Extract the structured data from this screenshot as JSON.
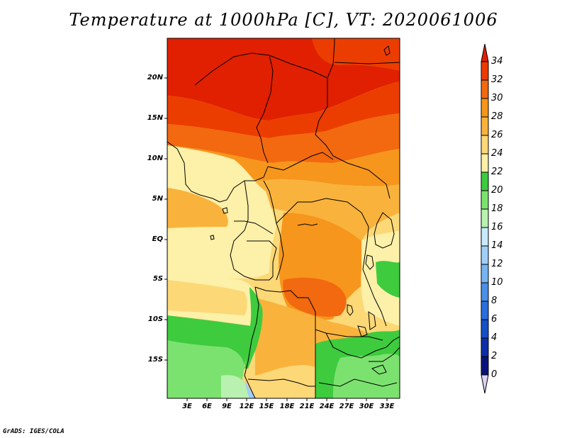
{
  "title": "Temperature at 1000hPa [C], VT: 2020061006",
  "credit": "GrADS: IGES/COLA",
  "map": {
    "lat_ticks": [
      "20N",
      "15N",
      "10N",
      "5N",
      "EQ",
      "5S",
      "10S",
      "15S"
    ],
    "lon_ticks": [
      "3E",
      "6E",
      "9E",
      "12E",
      "15E",
      "18E",
      "21E",
      "24E",
      "27E",
      "30E",
      "33E"
    ]
  },
  "colorbar": {
    "labels": [
      "34",
      "32",
      "30",
      "28",
      "26",
      "24",
      "22",
      "20",
      "18",
      "16",
      "14",
      "12",
      "10",
      "8",
      "6",
      "4",
      "2",
      "0"
    ],
    "colors": {
      "above_34": "#e02000",
      "32_34": "#ec3d00",
      "30_32": "#f26910",
      "28_30": "#f7961c",
      "26_28": "#f9b33c",
      "24_26": "#fcd877",
      "22_24": "#fdf0a8",
      "20_22": "#3ecb3e",
      "18_20": "#7ce26f",
      "16_18": "#b8f1b0",
      "14_16": "#c8eafc",
      "12_14": "#a0cef7",
      "10_12": "#78b4f2",
      "8_10": "#4a8fe8",
      "6_8": "#2a6fdc",
      "4_6": "#1650c8",
      "2_4": "#0e2ea8",
      "0_2": "#0a127a",
      "below_0": "#dcd2f4"
    }
  }
}
